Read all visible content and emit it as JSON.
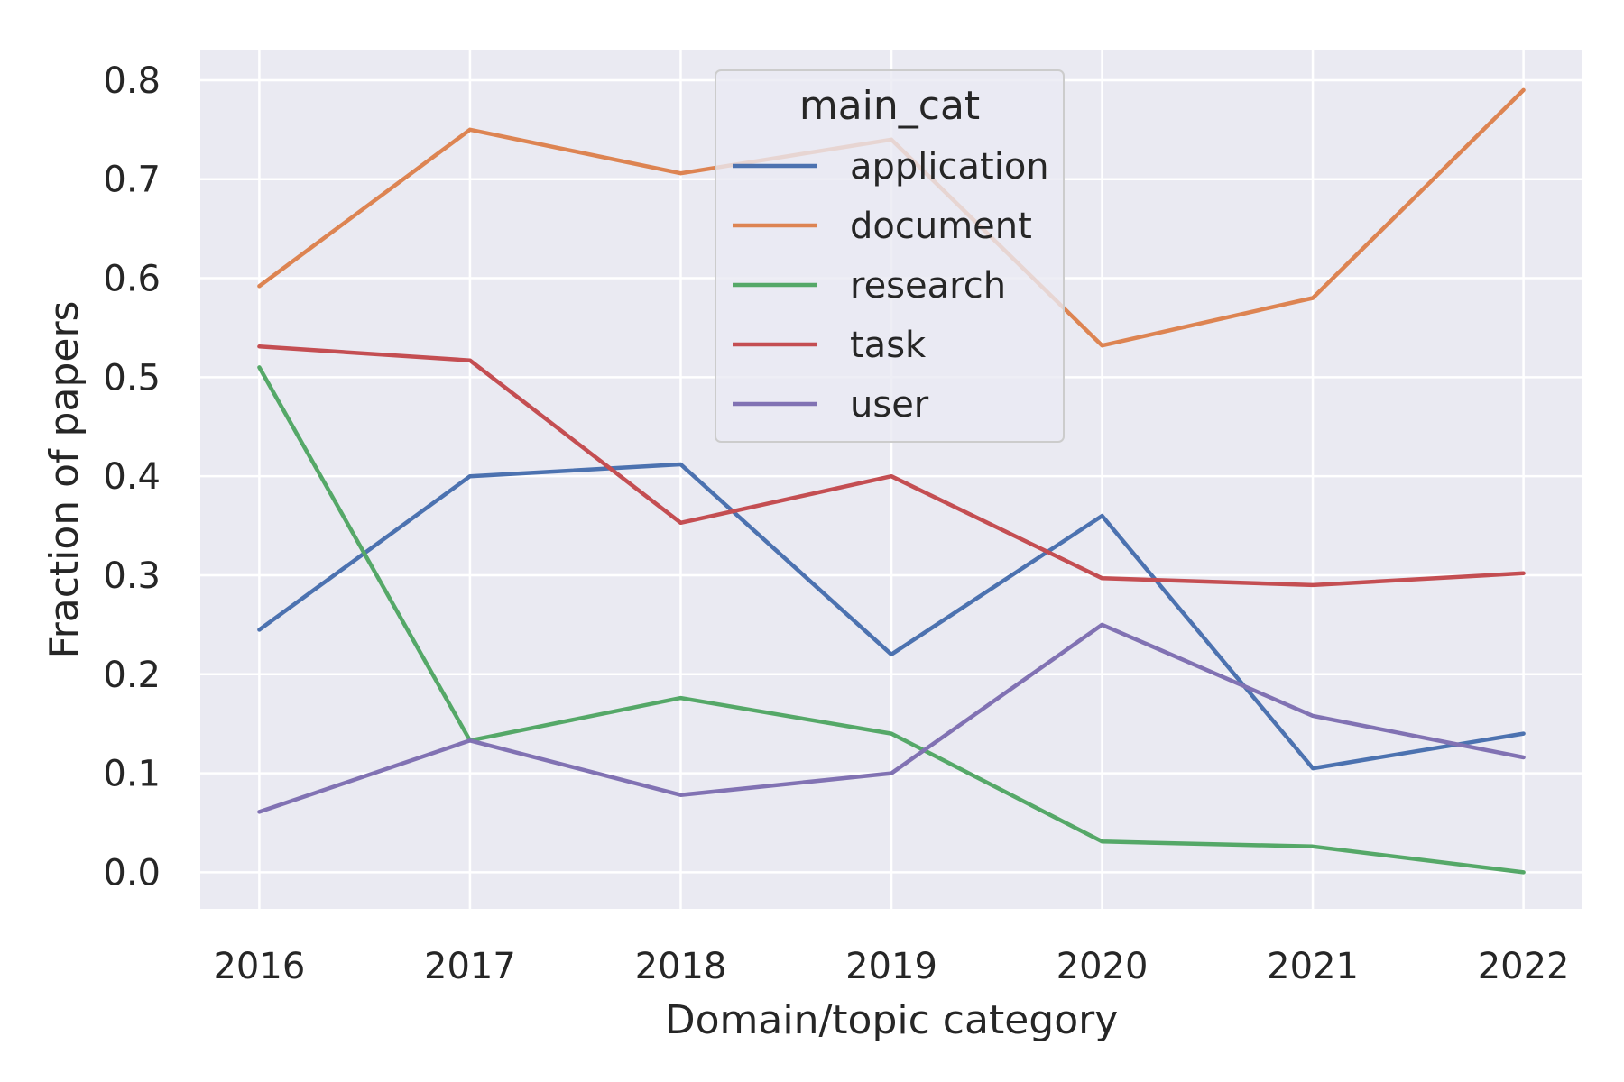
{
  "chart_data": {
    "type": "line",
    "title": "",
    "xlabel": "Domain/topic category",
    "ylabel": "Fraction of papers",
    "x": [
      "2016",
      "2017",
      "2018",
      "2019",
      "2020",
      "2021",
      "2022"
    ],
    "xtick_labels": [
      "2016",
      "2017",
      "2018",
      "2019",
      "2020",
      "2021",
      "2022"
    ],
    "yticks": [
      0.0,
      0.1,
      0.2,
      0.3,
      0.4,
      0.5,
      0.6,
      0.7,
      0.8
    ],
    "ytick_labels": [
      "0.0",
      "0.1",
      "0.2",
      "0.3",
      "0.4",
      "0.5",
      "0.6",
      "0.7",
      "0.8"
    ],
    "ylim": [
      -0.037,
      0.83
    ],
    "xlim": [
      2015.72,
      2022.28
    ],
    "grid": true,
    "background": "#eaeaf2",
    "grid_color": "#ffffff",
    "legend": {
      "title": "main_cat",
      "placement": "upper center"
    },
    "series": [
      {
        "name": "application",
        "color": "#4c72b0",
        "values": [
          0.245,
          0.4,
          0.412,
          0.22,
          0.36,
          0.105,
          0.14
        ]
      },
      {
        "name": "document",
        "color": "#dd8452",
        "values": [
          0.592,
          0.75,
          0.706,
          0.74,
          0.532,
          0.58,
          0.79
        ]
      },
      {
        "name": "research",
        "color": "#55a868",
        "values": [
          0.51,
          0.133,
          0.176,
          0.14,
          0.031,
          0.026,
          0.0
        ]
      },
      {
        "name": "task",
        "color": "#c44e52",
        "values": [
          0.531,
          0.517,
          0.353,
          0.4,
          0.297,
          0.29,
          0.302
        ]
      },
      {
        "name": "user",
        "color": "#8172b3",
        "values": [
          0.061,
          0.133,
          0.078,
          0.1,
          0.25,
          0.158,
          0.116
        ]
      }
    ]
  }
}
